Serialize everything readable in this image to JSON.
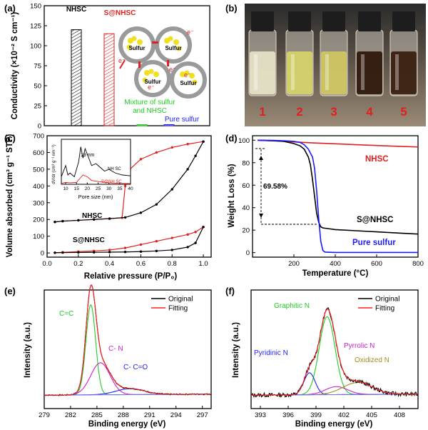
{
  "panels": {
    "a": "(a)",
    "b": "(b)",
    "c": "(c)",
    "d": "(d)",
    "e": "(e)",
    "f": "(f)"
  },
  "chart_data": [
    {
      "id": "a",
      "type": "bar",
      "ylabel": "Conductivity (×10⁻² S cm⁻¹)",
      "ylim": [
        0,
        150
      ],
      "yticks": [
        "0",
        "25",
        "50",
        "75",
        "100",
        "125",
        "150"
      ],
      "categories": [
        "NHSC",
        "S@NHSC",
        "Mixture of sulfur and NHSC",
        "Pure sulfur"
      ],
      "values": [
        120,
        115,
        0.6,
        0.1
      ],
      "colors": [
        "#000000",
        "#e02020",
        "#22cc22",
        "#1a1aff"
      ],
      "schematic": {
        "particle_label": "Sulfur",
        "electron_label": "e⁻"
      }
    },
    {
      "id": "b",
      "type": "photo",
      "vial_labels": [
        "1",
        "2",
        "3",
        "4",
        "5"
      ]
    },
    {
      "id": "c",
      "type": "line",
      "xlabel": "Relative pressure (P/P₀)",
      "ylabel": "Volume absorbed (cm³ g⁻¹ STP)",
      "xlim": [
        0,
        1.05
      ],
      "ylim": [
        -25,
        700
      ],
      "xticks": [
        "0.0",
        "0.2",
        "0.4",
        "0.6",
        "0.8",
        "1.0"
      ],
      "yticks": [
        "0",
        "100",
        "200",
        "300",
        "400",
        "500",
        "600",
        "700"
      ],
      "series": [
        {
          "name": "NHSC",
          "color": "#e02020",
          "kind": "desorption",
          "x": [
            0.05,
            0.1,
            0.2,
            0.3,
            0.4,
            0.48,
            0.5,
            0.53,
            0.6,
            0.7,
            0.8,
            0.9,
            1.0
          ],
          "y": [
            185,
            190,
            195,
            200,
            205,
            210,
            400,
            500,
            560,
            600,
            630,
            650,
            665
          ]
        },
        {
          "name": "NHSC",
          "color": "#000000",
          "kind": "adsorption",
          "x": [
            0.05,
            0.1,
            0.2,
            0.3,
            0.4,
            0.5,
            0.6,
            0.7,
            0.8,
            0.9,
            0.95,
            1.0
          ],
          "y": [
            185,
            190,
            195,
            200,
            205,
            212,
            240,
            290,
            380,
            500,
            580,
            665
          ]
        },
        {
          "name": "S@NHSC",
          "color": "#e02020",
          "kind": "desorption",
          "x": [
            0.05,
            0.1,
            0.2,
            0.3,
            0.4,
            0.5,
            0.6,
            0.7,
            0.8,
            0.9,
            0.95,
            1.0
          ],
          "y": [
            2,
            4,
            8,
            12,
            18,
            30,
            50,
            70,
            90,
            110,
            125,
            155
          ]
        },
        {
          "name": "S@NHSC",
          "color": "#000000",
          "kind": "adsorption",
          "x": [
            0.05,
            0.1,
            0.2,
            0.3,
            0.4,
            0.5,
            0.6,
            0.7,
            0.8,
            0.9,
            0.95,
            1.0
          ],
          "y": [
            1,
            2,
            3,
            4,
            5,
            6,
            8,
            12,
            18,
            35,
            60,
            155
          ]
        }
      ],
      "inset": {
        "xlabel": "Pore size (nm)",
        "ylabel": "dV/dr (cm³ g⁻¹ nm⁻¹)",
        "xlim": [
          8,
          40
        ],
        "xticks": [
          "10",
          "15",
          "20",
          "25",
          "30",
          "35",
          "40"
        ],
        "annotation": "19 nm",
        "series": [
          {
            "name": "NH SC",
            "color": "#000000",
            "x": [
              8,
              10,
              11,
              12,
              14,
              16,
              17,
              18,
              19,
              20,
              21,
              22,
              24,
              26,
              28,
              30,
              33,
              36,
              40
            ],
            "y": [
              0.4,
              1.0,
              0.5,
              0.6,
              0.4,
              1.2,
              2.0,
              1.4,
              1.9,
              1.6,
              1.3,
              1.0,
              1.1,
              0.9,
              0.7,
              0.8,
              0.6,
              0.5,
              0.45
            ]
          },
          {
            "name": "S@NH SC",
            "color": "#e02020",
            "x": [
              8,
              10,
              12,
              15,
              18,
              20,
              22,
              25,
              30,
              35,
              40
            ],
            "y": [
              0.05,
              0.1,
              0.08,
              0.1,
              0.5,
              0.4,
              0.2,
              0.15,
              0.08,
              0.05,
              0.04
            ]
          }
        ]
      }
    },
    {
      "id": "d",
      "type": "line",
      "xlabel": "Temperature (°C)",
      "ylabel": "Weight Loss (%)",
      "xlim": [
        0,
        800
      ],
      "ylim": [
        -4,
        104
      ],
      "xticks": [
        "200",
        "400",
        "600",
        "800"
      ],
      "yticks": [
        "0",
        "20",
        "40",
        "60",
        "80",
        "100"
      ],
      "annotation": "69.58%",
      "series": [
        {
          "name": "NHSC",
          "color": "#e02020",
          "x": [
            25,
            100,
            200,
            300,
            400,
            500,
            600,
            700,
            800
          ],
          "y": [
            100,
            99.5,
            98.5,
            97.5,
            96.8,
            96,
            95.3,
            94.6,
            94
          ]
        },
        {
          "name": "S@NHSC",
          "color": "#000000",
          "x": [
            25,
            100,
            150,
            200,
            230,
            250,
            270,
            280,
            290,
            300,
            310,
            320,
            330,
            340,
            360,
            400,
            500,
            600,
            700,
            800
          ],
          "y": [
            100,
            99.5,
            99,
            97,
            95,
            92,
            85,
            78,
            65,
            50,
            35,
            27,
            23,
            22,
            21.5,
            20.5,
            19.5,
            18.5,
            17.5,
            16.5
          ]
        },
        {
          "name": "Pure sulfur",
          "color": "#1a1aff",
          "x": [
            25,
            100,
            150,
            200,
            230,
            250,
            270,
            290,
            300,
            310,
            320,
            330,
            340,
            350,
            400,
            600,
            800
          ],
          "y": [
            100,
            99.8,
            99.5,
            99,
            98,
            96,
            92,
            85,
            75,
            55,
            30,
            10,
            2,
            0.5,
            0.2,
            0.2,
            0.2
          ]
        }
      ]
    },
    {
      "id": "e",
      "type": "line",
      "xlabel": "Binding energy (eV)",
      "ylabel": "Intensity (a.u.)",
      "xlim": [
        279,
        298
      ],
      "xticks": [
        "279",
        "282",
        "285",
        "288",
        "291",
        "294",
        "297"
      ],
      "legend": [
        "Original",
        "Fitting"
      ],
      "peak_labels": [
        "C=C",
        "C- N",
        "C- C=O"
      ],
      "series": [
        {
          "name": "Original",
          "color": "#000000"
        },
        {
          "name": "Fitting",
          "color": "#ff2020"
        },
        {
          "name": "C=C",
          "color": "#22cc22",
          "center": 284.3,
          "height": 0.9,
          "width": 0.55
        },
        {
          "name": "C- N",
          "color": "#cc22cc",
          "center": 285.4,
          "height": 0.32,
          "width": 1.1
        },
        {
          "name": "C- C=O",
          "color": "#2222ff",
          "center": 288.8,
          "height": 0.06,
          "width": 1.6
        }
      ]
    },
    {
      "id": "f",
      "type": "line",
      "xlabel": "Binding energy (eV)",
      "ylabel": "Intensity (a.u.)",
      "xlim": [
        392,
        410
      ],
      "xticks": [
        "393",
        "396",
        "399",
        "402",
        "405",
        "408"
      ],
      "legend": [
        "Original",
        "Fitting"
      ],
      "peak_labels": [
        "Graphitic N",
        "Pyrrolic N",
        "Pyridinic N",
        "Oxidized N"
      ],
      "series": [
        {
          "name": "Original",
          "color": "#000000"
        },
        {
          "name": "Fitting",
          "color": "#ff2020"
        },
        {
          "name": "Graphitic N",
          "color": "#22cc22",
          "center": 400.2,
          "height": 0.78,
          "width": 0.85
        },
        {
          "name": "Pyridinic N",
          "color": "#2222ff",
          "center": 398.3,
          "height": 0.22,
          "width": 0.6
        },
        {
          "name": "Pyrrolic N",
          "color": "#cc22cc",
          "center": 401.2,
          "height": 0.08,
          "width": 1.2
        },
        {
          "name": "Oxidized N",
          "color": "#a09020",
          "center": 403.5,
          "height": 0.12,
          "width": 1.6
        }
      ]
    }
  ]
}
